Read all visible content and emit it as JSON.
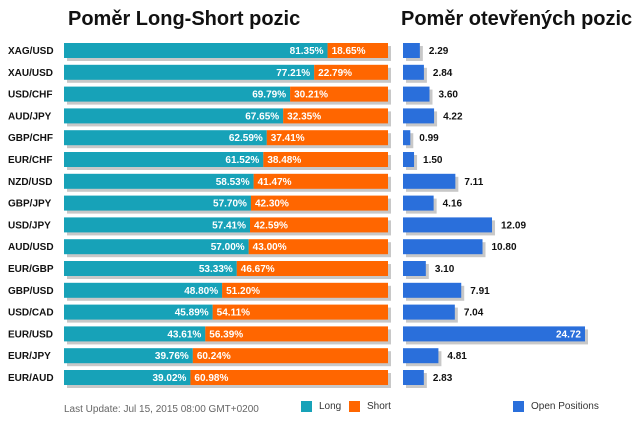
{
  "titles": {
    "left": "Poměr Long-Short pozic",
    "right": "Poměr otevřených pozic"
  },
  "footer": {
    "last_update": "Last Update: Jul 15, 2015 08:00 GMT+0200"
  },
  "legend": {
    "long": "Long",
    "short": "Short",
    "open_positions": "Open Positions"
  },
  "colors": {
    "long": "#17a2b8",
    "short": "#ff6600",
    "open_positions": "#2a6fdb",
    "shadow": "#c8c8c8"
  },
  "chart_data": [
    {
      "type": "bar",
      "orientation": "horizontal",
      "stacked": true,
      "title": "Poměr Long-Short pozic",
      "categories": [
        "XAG/USD",
        "XAU/USD",
        "USD/CHF",
        "AUD/JPY",
        "GBP/CHF",
        "EUR/CHF",
        "NZD/USD",
        "GBP/JPY",
        "USD/JPY",
        "AUD/USD",
        "EUR/GBP",
        "GBP/USD",
        "USD/CAD",
        "EUR/USD",
        "EUR/JPY",
        "EUR/AUD"
      ],
      "series": [
        {
          "name": "Long",
          "values": [
            81.35,
            77.21,
            69.79,
            67.65,
            62.59,
            61.52,
            58.53,
            57.7,
            57.41,
            57.0,
            53.33,
            48.8,
            45.89,
            43.61,
            39.76,
            39.02
          ]
        },
        {
          "name": "Short",
          "values": [
            18.65,
            22.79,
            30.21,
            32.35,
            37.41,
            38.48,
            41.47,
            42.3,
            42.59,
            43.0,
            46.67,
            51.2,
            54.11,
            56.39,
            60.24,
            60.98
          ]
        }
      ],
      "labels": [
        [
          "81.35%",
          "18.65%"
        ],
        [
          "77.21%",
          "22.79%"
        ],
        [
          "69.79%",
          "30.21%"
        ],
        [
          "67.65%",
          "32.35%"
        ],
        [
          "62.59%",
          "37.41%"
        ],
        [
          "61.52%",
          "38.48%"
        ],
        [
          "58.53%",
          "41.47%"
        ],
        [
          "57.70%",
          "42.30%"
        ],
        [
          "57.41%",
          "42.59%"
        ],
        [
          "57.00%",
          "43.00%"
        ],
        [
          "53.33%",
          "46.67%"
        ],
        [
          "48.80%",
          "51.20%"
        ],
        [
          "45.89%",
          "54.11%"
        ],
        [
          "43.61%",
          "56.39%"
        ],
        [
          "39.76%",
          "60.24%"
        ],
        [
          "39.02%",
          "60.98%"
        ]
      ],
      "xlim": [
        0,
        100
      ],
      "legend_position": "bottom"
    },
    {
      "type": "bar",
      "orientation": "horizontal",
      "title": "Poměr otevřených pozic",
      "categories": [
        "XAG/USD",
        "XAU/USD",
        "USD/CHF",
        "AUD/JPY",
        "GBP/CHF",
        "EUR/CHF",
        "NZD/USD",
        "GBP/JPY",
        "USD/JPY",
        "AUD/USD",
        "EUR/GBP",
        "GBP/USD",
        "USD/CAD",
        "EUR/USD",
        "EUR/JPY",
        "EUR/AUD"
      ],
      "series": [
        {
          "name": "Open Positions",
          "values": [
            2.29,
            2.84,
            3.6,
            4.22,
            0.99,
            1.5,
            7.11,
            4.16,
            12.09,
            10.8,
            3.1,
            7.91,
            7.04,
            24.72,
            4.81,
            2.83
          ]
        }
      ],
      "labels": [
        "2.29",
        "2.84",
        "3.60",
        "4.22",
        "0.99",
        "1.50",
        "7.11",
        "4.16",
        "12.09",
        "10.80",
        "3.10",
        "7.91",
        "7.04",
        "24.72",
        "4.81",
        "2.83"
      ],
      "xlim": [
        0,
        24.72
      ],
      "legend_position": "bottom"
    }
  ]
}
